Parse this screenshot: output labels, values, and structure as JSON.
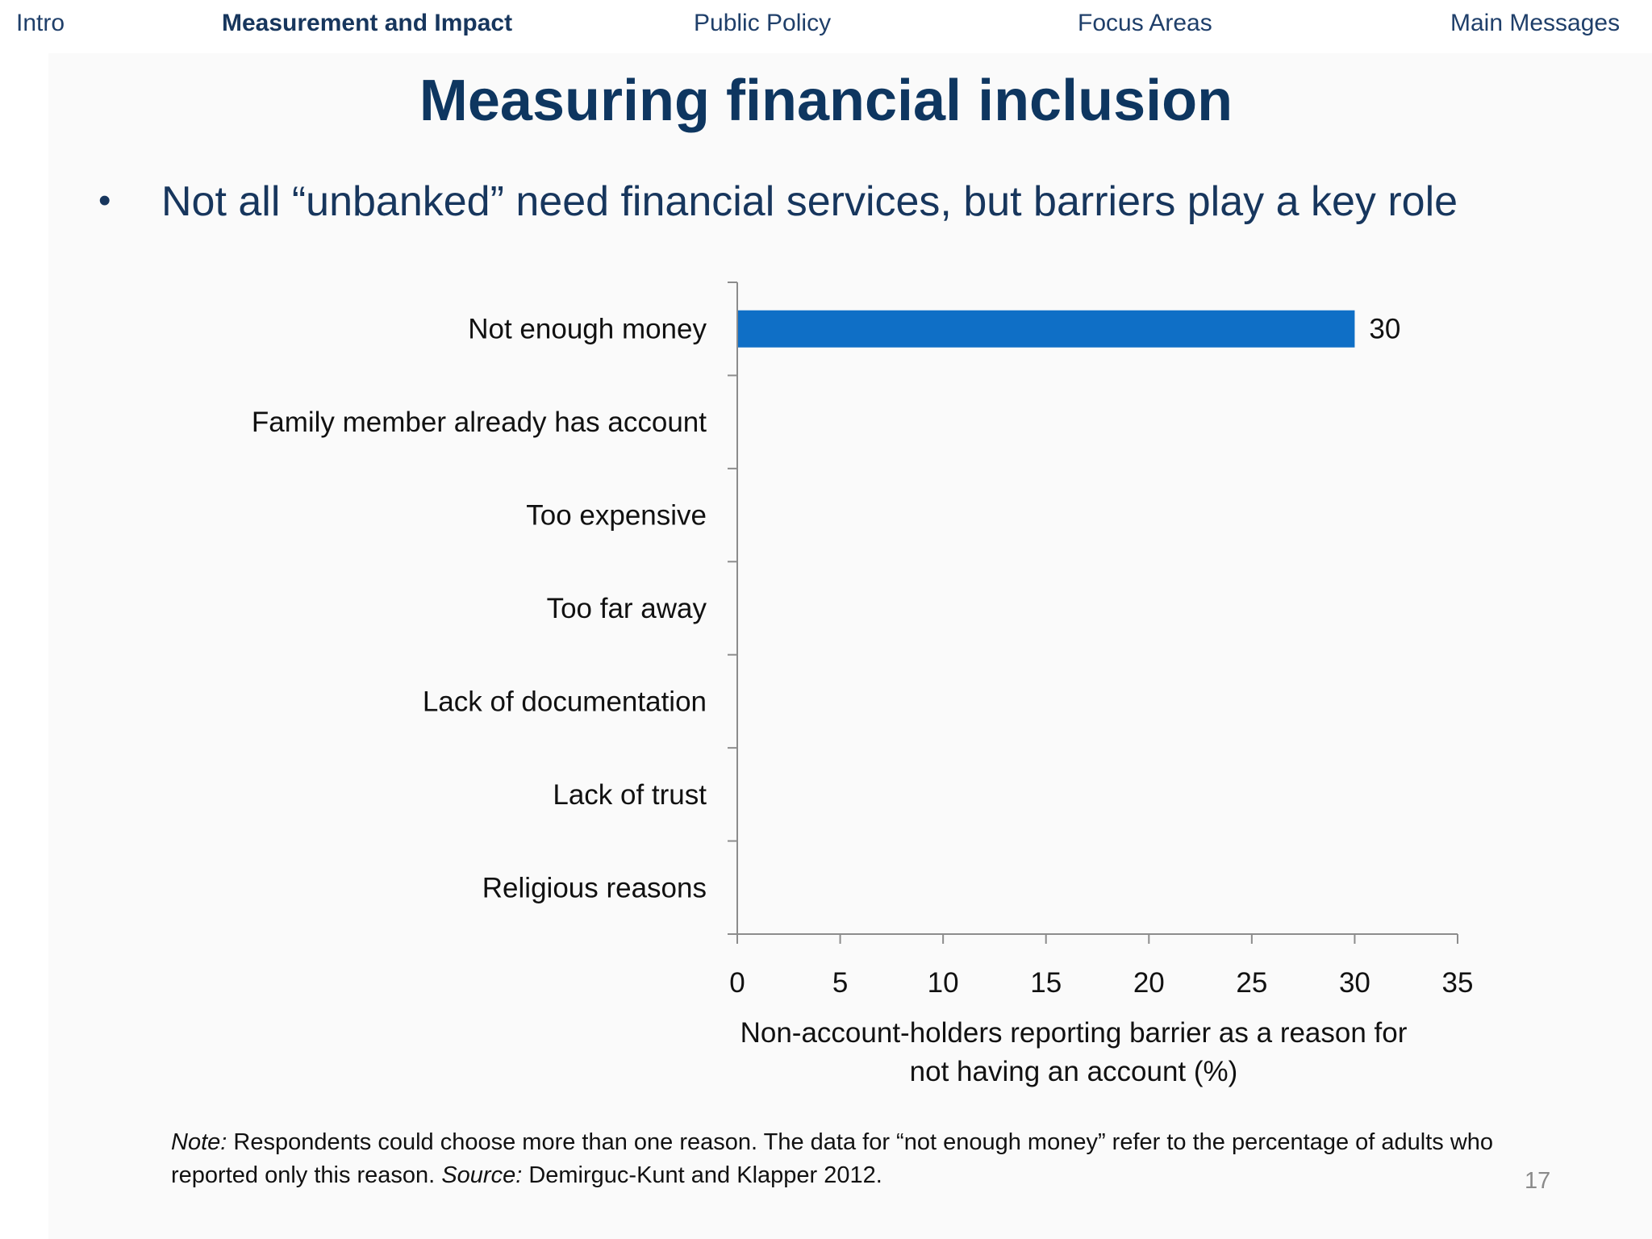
{
  "nav": {
    "items": [
      {
        "label": "Intro",
        "active": false
      },
      {
        "label": "Measurement and Impact",
        "active": true
      },
      {
        "label": "Public Policy",
        "active": false
      },
      {
        "label": "Focus Areas",
        "active": false
      },
      {
        "label": "Main Messages",
        "active": false
      }
    ]
  },
  "slide": {
    "title": "Measuring financial inclusion",
    "bullet": "Not all “unbanked” need financial services, but barriers play a key role",
    "note": {
      "note_label": "Note:",
      "note_text": " Respondents could choose more than one reason. The data for “not enough money” refer to the percentage of adults who reported only this reason. ",
      "source_label": "Source:",
      "source_text": " Demirguc-Kunt and Klapper 2012."
    },
    "page_number": "17"
  },
  "chart_data": {
    "type": "bar",
    "orientation": "horizontal",
    "categories": [
      "Not enough money",
      "Family member already has account",
      "Too expensive",
      "Too far away",
      "Lack of documentation",
      "Lack of trust",
      "Religious reasons"
    ],
    "values": [
      30,
      null,
      null,
      null,
      null,
      null,
      null
    ],
    "data_labels": [
      "30",
      "",
      "",
      "",
      "",
      "",
      ""
    ],
    "xlim": [
      0,
      35
    ],
    "xticks": [
      0,
      5,
      10,
      15,
      20,
      25,
      30,
      35
    ],
    "xlabel_lines": [
      "Non-account-holders reporting barrier as a reason for",
      "not having an account (%)"
    ],
    "ylabel": "",
    "grid": false,
    "bar_color": "#0f6fc6",
    "axis_color": "#8c8c8c"
  }
}
